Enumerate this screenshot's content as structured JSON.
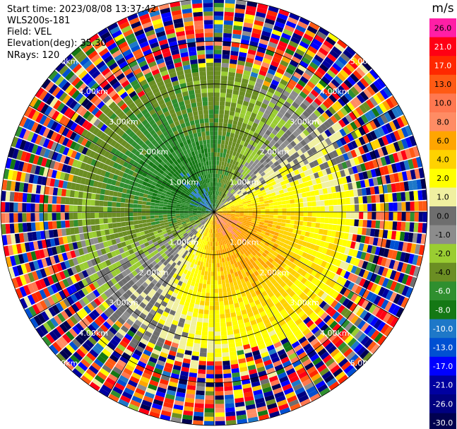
{
  "info": {
    "start_time": "Start time: 2023/08/08 13:37:42",
    "instrument": "WLS200s-181",
    "field": "Field: VEL",
    "elevation": "Elevation(deg): 35.30",
    "nrays": "NRays: 120"
  },
  "chart_data": {
    "type": "heatmap",
    "projection": "polar-ppi",
    "title": "",
    "range_unit": "km",
    "range_rings_km": [
      1.0,
      2.0,
      3.0,
      4.0,
      5.0
    ],
    "range_ring_labels": [
      "1.00km",
      "2.00km",
      "3.00km",
      "4.00km",
      "5.00km"
    ],
    "max_range_km": 5.0,
    "n_rays": 120,
    "n_gates": 50,
    "colorbar": {
      "unit": "m/s",
      "ticks": [
        "26.0",
        "21.0",
        "17.0",
        "13.0",
        "10.0",
        "8.0",
        "6.0",
        "4.0",
        "2.0",
        "1.0",
        "0.0",
        "-1.0",
        "-2.0",
        "-4.0",
        "-6.0",
        "-8.0",
        "-10.0",
        "-13.0",
        "-17.0",
        "-21.0",
        "-26.0",
        "-30.0"
      ],
      "colors": [
        "#ff1fa6",
        "#ff0014",
        "#ff2800",
        "#ff5a14",
        "#ff7850",
        "#ff8c64",
        "#ffa500",
        "#ffd200",
        "#ffff00",
        "#f0f0a0",
        "#6e6e6e",
        "#8c8c8c",
        "#9acd32",
        "#6b8e23",
        "#2f8f2f",
        "#147814",
        "#1e78c8",
        "#0050d2",
        "#0000ff",
        "#0000a0",
        "#000080",
        "#000050"
      ]
    },
    "field_model": {
      "inner_negative_center_deg": 315,
      "inner_positive_center_deg": 135,
      "near_gate_speed_m_s": 9,
      "noise_starts_km": 3.2
    }
  }
}
